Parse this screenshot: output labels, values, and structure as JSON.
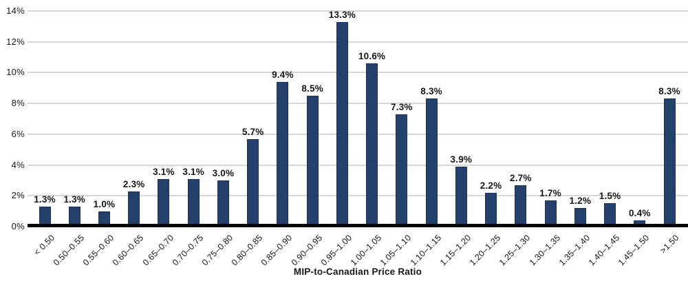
{
  "chart_data": {
    "type": "bar",
    "title": "",
    "xlabel": "MIP-to-Canadian Price Ratio",
    "ylabel": "",
    "ylim": [
      0,
      14
    ],
    "ytick_step": 2,
    "ytick_labels": [
      "0%",
      "2%",
      "4%",
      "6%",
      "8%",
      "10%",
      "12%",
      "14%"
    ],
    "grid": true,
    "legend": "none",
    "categories": [
      "< 0.50",
      "0.50–0.55",
      "0.55–0.60",
      "0.60–0.65",
      "0.65–0.70",
      "0.70–0.75",
      "0.75–0.80",
      "0.80–0.85",
      "0.85–0.90",
      "0.90–0.95",
      "0.95–1.00",
      "1.00–1.05",
      "1.05–1.10",
      "1.10–1.15",
      "1.15–1.20",
      "1.20–1.25",
      "1.25–1.30",
      "1.30–1.35",
      "1.35–1.40",
      "1.40–1.45",
      "1.45–1.50",
      ">1.50"
    ],
    "values": [
      1.3,
      1.3,
      1.0,
      2.3,
      3.1,
      3.1,
      3.0,
      5.7,
      9.4,
      8.5,
      13.3,
      10.6,
      7.3,
      8.3,
      3.9,
      2.2,
      2.7,
      1.7,
      1.2,
      1.5,
      0.4,
      8.3
    ],
    "value_labels": [
      "1.3%",
      "1.3%",
      "1.0%",
      "2.3%",
      "3.1%",
      "3.1%",
      "3.0%",
      "5.7%",
      "9.4%",
      "8.5%",
      "13.3%",
      "10.6%",
      "7.3%",
      "8.3%",
      "3.9%",
      "2.2%",
      "2.7%",
      "1.7%",
      "1.2%",
      "1.5%",
      "0.4%",
      "8.3%"
    ],
    "colors": {
      "bar_fill": "#24406D",
      "bar_border": "#1B3054",
      "gridline": "#D7D7D7",
      "axis_line": "#000000",
      "text": "#161616"
    }
  }
}
